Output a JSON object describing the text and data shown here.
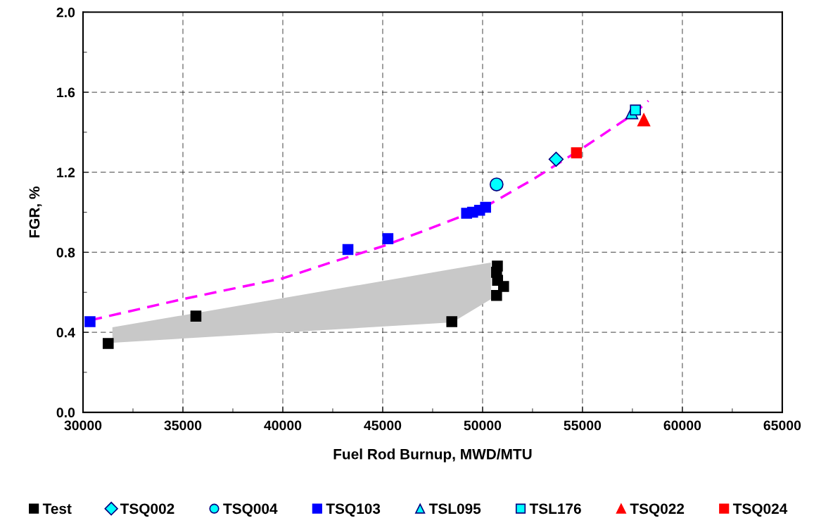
{
  "chart_data": {
    "type": "scatter",
    "xlabel": "Fuel Rod Burnup, MWD/MTU",
    "ylabel": "FGR, %",
    "xlim": [
      30000,
      65000
    ],
    "xticks": [
      30000,
      35000,
      40000,
      45000,
      50000,
      55000,
      60000,
      65000
    ],
    "ylim": [
      0,
      2.0
    ],
    "yticks": [
      {
        "value": 0,
        "label": "0.0"
      },
      {
        "value": 0.4,
        "label": "0.4"
      },
      {
        "value": 0.8,
        "label": "0.8"
      },
      {
        "value": 1.2,
        "label": "1.2"
      },
      {
        "value": 1.6,
        "label": "1.6"
      },
      {
        "value": 2.0,
        "label": "2.0"
      }
    ],
    "grid": true,
    "legend": "bottom",
    "series": [
      {
        "type": "area",
        "color": "#c8c8c8",
        "x": [
          31470,
          48490,
          50420
        ],
        "values": [
          null,
          null,
          null
        ],
        "upper": [
          0.425,
          0.716,
          0.749
        ],
        "lower": [
          0.348,
          0.45,
          0.566
        ]
      },
      {
        "type": "line",
        "color": "#ff00ff",
        "line_style": "dashed",
        "marker": "none",
        "x": [
          30350,
          35000,
          40000,
          42500,
          45000,
          47500,
          50000,
          52500,
          55000,
          57500,
          58300
        ],
        "values": [
          0.46,
          0.566,
          0.67,
          0.752,
          0.83,
          0.924,
          1.02,
          1.163,
          1.32,
          1.487,
          1.557
        ]
      },
      {
        "name": "Test",
        "marker": "square",
        "color": "#000000",
        "x": [
          31260,
          35650,
          48460,
          50740,
          50700,
          50750,
          51050,
          50700
        ],
        "values": [
          0.344,
          0.481,
          0.453,
          0.731,
          0.7,
          0.66,
          0.629,
          0.584
        ]
      },
      {
        "name": "TSQ002",
        "marker": "diamond",
        "color": "#00ffff",
        "x": [
          53680
        ],
        "values": [
          1.265
        ]
      },
      {
        "name": "TSQ004",
        "marker": "circle",
        "color": "#00ffff",
        "x": [
          50700
        ],
        "values": [
          1.139
        ]
      },
      {
        "name": "TSQ103",
        "marker": "square",
        "color": "#0000ff",
        "x": [
          30350,
          43260,
          45260,
          49200,
          49500,
          49850,
          50150
        ],
        "values": [
          0.453,
          0.814,
          0.868,
          0.995,
          1.0,
          1.01,
          1.025
        ]
      },
      {
        "name": "TSL095",
        "marker": "triangle",
        "color": "#00ffff",
        "x": [
          57470
        ],
        "values": [
          1.497
        ]
      },
      {
        "name": "TSL176",
        "marker": "square",
        "color": "#00ffff",
        "x": [
          57650
        ],
        "values": [
          1.511
        ]
      },
      {
        "name": "TSQ022",
        "marker": "triangle",
        "color": "#ff0000",
        "x": [
          58070
        ],
        "values": [
          1.462
        ]
      },
      {
        "name": "TSQ024",
        "marker": "square",
        "color": "#ff0000",
        "x": [
          54700
        ],
        "values": [
          1.297
        ]
      }
    ]
  }
}
